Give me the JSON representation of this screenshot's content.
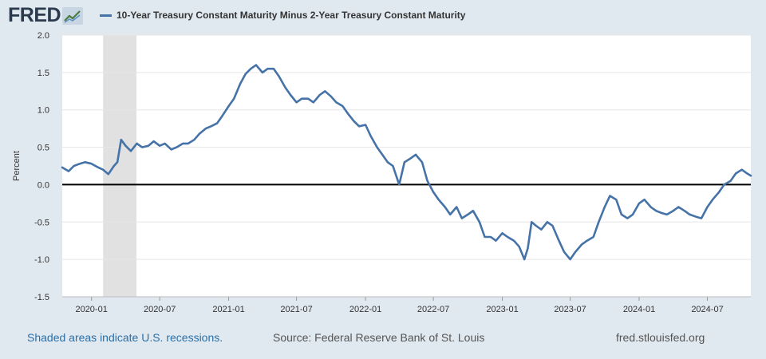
{
  "brand": {
    "logo_text": "FRED",
    "logo_icon": "chart-line-icon"
  },
  "legend": {
    "label": "10-Year Treasury Constant Maturity Minus 2-Year Treasury Constant Maturity"
  },
  "footer": {
    "recession_note": "Shaded areas indicate U.S. recessions.",
    "source": "Source: Federal Reserve Bank of St. Louis",
    "site": "fred.stlouisfed.org"
  },
  "colors": {
    "line": "#4572a7",
    "recession": "#e1e1e1",
    "zero_line": "#000000",
    "grid": "#e6e6e6",
    "page_background": "#e1e9f0"
  },
  "chart_data": {
    "type": "line",
    "title": "",
    "xlabel": "",
    "ylabel": "Percent",
    "ylim": [
      -1.5,
      2.0
    ],
    "yticks": [
      -1.5,
      -1.0,
      -0.5,
      0.0,
      0.5,
      1.0,
      1.5,
      2.0
    ],
    "ytick_labels": [
      "-1.5",
      "-1.0",
      "-0.5",
      "0.0",
      "0.5",
      "1.0",
      "1.5",
      "2.0"
    ],
    "xlim": [
      "2019-10-15",
      "2024-10-25"
    ],
    "xticks": [
      "2020-01",
      "2020-07",
      "2021-01",
      "2021-07",
      "2022-01",
      "2022-07",
      "2023-01",
      "2023-07",
      "2024-01",
      "2024-07"
    ],
    "grid": true,
    "legend_position": "top",
    "recessions": [
      {
        "start": "2020-02-01",
        "end": "2020-04-30"
      }
    ],
    "reference_line": 0,
    "series": [
      {
        "name": "10-Year Treasury Constant Maturity Minus 2-Year Treasury Constant Maturity",
        "x": [
          "2019-10-15",
          "2019-11-01",
          "2019-11-15",
          "2019-12-01",
          "2019-12-15",
          "2020-01-01",
          "2020-01-15",
          "2020-02-01",
          "2020-02-15",
          "2020-03-01",
          "2020-03-10",
          "2020-03-20",
          "2020-04-01",
          "2020-04-15",
          "2020-05-01",
          "2020-05-15",
          "2020-06-01",
          "2020-06-15",
          "2020-07-01",
          "2020-07-15",
          "2020-08-01",
          "2020-08-15",
          "2020-09-01",
          "2020-09-15",
          "2020-10-01",
          "2020-10-15",
          "2020-11-01",
          "2020-11-15",
          "2020-12-01",
          "2020-12-15",
          "2021-01-01",
          "2021-01-15",
          "2021-02-01",
          "2021-02-15",
          "2021-03-01",
          "2021-03-15",
          "2021-04-01",
          "2021-04-15",
          "2021-05-01",
          "2021-05-15",
          "2021-06-01",
          "2021-06-15",
          "2021-07-01",
          "2021-07-15",
          "2021-08-01",
          "2021-08-15",
          "2021-09-01",
          "2021-09-15",
          "2021-10-01",
          "2021-10-15",
          "2021-11-01",
          "2021-11-15",
          "2021-12-01",
          "2021-12-15",
          "2022-01-01",
          "2022-01-15",
          "2022-02-01",
          "2022-02-15",
          "2022-03-01",
          "2022-03-15",
          "2022-04-01",
          "2022-04-15",
          "2022-05-01",
          "2022-05-15",
          "2022-06-01",
          "2022-06-15",
          "2022-07-01",
          "2022-07-15",
          "2022-08-01",
          "2022-08-15",
          "2022-09-01",
          "2022-09-15",
          "2022-10-01",
          "2022-10-15",
          "2022-11-01",
          "2022-11-15",
          "2022-12-01",
          "2022-12-15",
          "2023-01-01",
          "2023-01-15",
          "2023-02-01",
          "2023-02-15",
          "2023-03-01",
          "2023-03-10",
          "2023-03-20",
          "2023-04-01",
          "2023-04-15",
          "2023-05-01",
          "2023-05-15",
          "2023-06-01",
          "2023-06-15",
          "2023-07-01",
          "2023-07-15",
          "2023-08-01",
          "2023-08-15",
          "2023-09-01",
          "2023-09-15",
          "2023-10-01",
          "2023-10-15",
          "2023-11-01",
          "2023-11-15",
          "2023-12-01",
          "2023-12-15",
          "2024-01-01",
          "2024-01-15",
          "2024-02-01",
          "2024-02-15",
          "2024-03-01",
          "2024-03-15",
          "2024-04-01",
          "2024-04-15",
          "2024-05-01",
          "2024-05-15",
          "2024-06-01",
          "2024-06-15",
          "2024-07-01",
          "2024-07-15",
          "2024-08-01",
          "2024-08-15",
          "2024-09-01",
          "2024-09-15",
          "2024-10-01",
          "2024-10-15",
          "2024-10-25"
        ],
        "values": [
          0.23,
          0.18,
          0.25,
          0.28,
          0.3,
          0.28,
          0.24,
          0.2,
          0.14,
          0.25,
          0.3,
          0.6,
          0.52,
          0.45,
          0.55,
          0.5,
          0.52,
          0.58,
          0.52,
          0.55,
          0.47,
          0.5,
          0.55,
          0.55,
          0.6,
          0.68,
          0.75,
          0.78,
          0.82,
          0.92,
          1.05,
          1.15,
          1.35,
          1.48,
          1.55,
          1.6,
          1.5,
          1.55,
          1.55,
          1.45,
          1.3,
          1.2,
          1.1,
          1.15,
          1.15,
          1.1,
          1.2,
          1.25,
          1.18,
          1.1,
          1.05,
          0.95,
          0.85,
          0.78,
          0.8,
          0.65,
          0.5,
          0.4,
          0.3,
          0.25,
          0.0,
          0.3,
          0.35,
          0.4,
          0.3,
          0.05,
          -0.1,
          -0.2,
          -0.3,
          -0.4,
          -0.3,
          -0.45,
          -0.4,
          -0.35,
          -0.5,
          -0.7,
          -0.7,
          -0.75,
          -0.65,
          -0.7,
          -0.75,
          -0.83,
          -1.0,
          -0.85,
          -0.5,
          -0.55,
          -0.6,
          -0.5,
          -0.55,
          -0.75,
          -0.9,
          -1.0,
          -0.9,
          -0.8,
          -0.75,
          -0.7,
          -0.5,
          -0.3,
          -0.15,
          -0.2,
          -0.4,
          -0.45,
          -0.4,
          -0.25,
          -0.2,
          -0.3,
          -0.35,
          -0.38,
          -0.4,
          -0.35,
          -0.3,
          -0.35,
          -0.4,
          -0.43,
          -0.45,
          -0.3,
          -0.2,
          -0.1,
          0.0,
          0.05,
          0.15,
          0.2,
          0.15,
          0.12
        ]
      }
    ]
  }
}
